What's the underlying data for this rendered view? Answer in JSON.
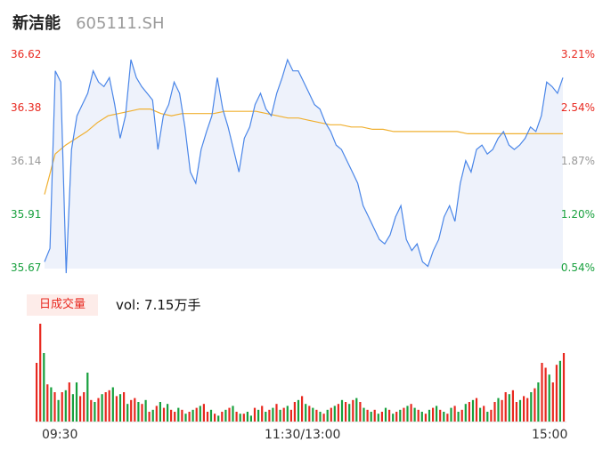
{
  "header": {
    "name": "新洁能",
    "code": "605111.SH"
  },
  "price_axis": {
    "left_ticks": [
      "36.62",
      "36.38",
      "36.14",
      "35.91",
      "35.67"
    ],
    "right_ticks": [
      "3.21%",
      "2.54%",
      "1.87%",
      "1.20%",
      "0.54%"
    ],
    "colors": {
      "up": "#e8281f",
      "down": "#17a03d",
      "neutral": "#999999"
    }
  },
  "volume": {
    "badge": "日成交量",
    "text": "vol: 7.15万手"
  },
  "time_labels": [
    "09:30",
    "11:30/13:00",
    "15:00"
  ],
  "colors": {
    "price_line": "#4a86e8",
    "avg_line": "#f0b030",
    "vol_up": "#e8281f",
    "vol_down": "#17a03d"
  },
  "chart_data": [
    {
      "type": "line",
      "title": "",
      "x_range": [
        "09:30",
        "15:00"
      ],
      "ylim": [
        35.67,
        36.62
      ],
      "series": [
        {
          "name": "",
          "values": [
            35.7,
            35.76,
            36.55,
            36.5,
            35.65,
            36.2,
            36.35,
            36.4,
            36.45,
            36.55,
            36.5,
            36.48,
            36.52,
            36.4,
            36.25,
            36.35,
            36.6,
            36.52,
            36.48,
            36.45,
            36.42,
            36.2,
            36.35,
            36.4,
            36.5,
            36.45,
            36.3,
            36.1,
            36.05,
            36.2,
            36.28,
            36.35,
            36.52,
            36.38,
            36.3,
            36.2,
            36.1,
            36.25,
            36.3,
            36.4,
            36.45,
            36.38,
            36.35,
            36.45,
            36.52,
            36.6,
            36.55,
            36.55,
            36.5,
            36.45,
            36.4,
            36.38,
            36.32,
            36.28,
            36.22,
            36.2,
            36.15,
            36.1,
            36.05,
            35.95,
            35.9,
            35.85,
            35.8,
            35.78,
            35.82,
            35.9,
            35.95,
            35.8,
            35.75,
            35.78,
            35.7,
            35.68,
            35.75,
            35.8,
            35.9,
            35.95,
            35.88,
            36.05,
            36.15,
            36.1,
            36.2,
            36.22,
            36.18,
            36.2,
            36.25,
            36.28,
            36.22,
            36.2,
            36.22,
            36.25,
            36.3,
            36.28,
            36.35,
            36.5,
            36.48,
            36.45,
            36.52
          ]
        },
        {
          "name": "",
          "values": [
            36.0,
            36.18,
            36.22,
            36.25,
            36.28,
            36.32,
            36.35,
            36.36,
            36.37,
            36.38,
            36.38,
            36.36,
            36.35,
            36.36,
            36.36,
            36.36,
            36.36,
            36.37,
            36.37,
            36.37,
            36.37,
            36.36,
            36.35,
            36.34,
            36.34,
            36.33,
            36.32,
            36.31,
            36.31,
            36.3,
            36.3,
            36.29,
            36.29,
            36.28,
            36.28,
            36.28,
            36.28,
            36.28,
            36.28,
            36.28,
            36.27,
            36.27,
            36.27,
            36.27,
            36.27,
            36.27,
            36.27,
            36.27,
            36.27,
            36.27
          ]
        }
      ]
    },
    {
      "type": "bar",
      "title": "日成交量",
      "values": [
        60,
        100,
        70,
        38,
        35,
        30,
        22,
        30,
        32,
        40,
        28,
        40,
        26,
        30,
        50,
        22,
        20,
        24,
        28,
        30,
        32,
        35,
        26,
        28,
        30,
        18,
        22,
        24,
        20,
        18,
        22,
        10,
        12,
        16,
        20,
        14,
        18,
        12,
        10,
        14,
        12,
        8,
        10,
        12,
        14,
        16,
        18,
        10,
        12,
        8,
        6,
        10,
        12,
        14,
        16,
        10,
        8,
        8,
        10,
        6,
        14,
        12,
        16,
        10,
        12,
        14,
        18,
        12,
        14,
        16,
        12,
        20,
        22,
        26,
        18,
        16,
        14,
        12,
        10,
        8,
        12,
        14,
        16,
        18,
        22,
        20,
        18,
        22,
        24,
        20,
        14,
        12,
        10,
        12,
        8,
        10,
        14,
        12,
        8,
        10,
        12,
        14,
        16,
        18,
        14,
        12,
        10,
        8,
        12,
        14,
        16,
        12,
        10,
        8,
        14,
        16,
        10,
        12,
        18,
        20,
        22,
        24,
        14,
        16,
        10,
        12,
        20,
        24,
        22,
        30,
        28,
        32,
        20,
        22,
        26,
        24,
        30,
        34,
        40,
        60,
        55,
        48,
        40,
        58,
        62,
        70
      ],
      "up": [
        1,
        1,
        0,
        1,
        0,
        1,
        0,
        1,
        0,
        1,
        0,
        0,
        1,
        1,
        0,
        1,
        0,
        1,
        0,
        1,
        1,
        0,
        1,
        0,
        1,
        0,
        1,
        1,
        0,
        1,
        0,
        1,
        0,
        1,
        0,
        1,
        0,
        1,
        1,
        0,
        1,
        0,
        1,
        0,
        1,
        0,
        1,
        1,
        0,
        1,
        0,
        1,
        0,
        1,
        0,
        1,
        0,
        1,
        0,
        0,
        1,
        0,
        1,
        0,
        1,
        0,
        1,
        0,
        1,
        0,
        1,
        1,
        0,
        1,
        0,
        1,
        0,
        1,
        0,
        1,
        0,
        1,
        0,
        1,
        0,
        1,
        0,
        1,
        0,
        1,
        0,
        1,
        0,
        1,
        0,
        1,
        0,
        1,
        0,
        1,
        0,
        1,
        0,
        1,
        0,
        1,
        0,
        1,
        0,
        1,
        0,
        1,
        0,
        1,
        0,
        1,
        0,
        1,
        0,
        1,
        0,
        1,
        0,
        1,
        0,
        1,
        1,
        0,
        1,
        1,
        0,
        1,
        1,
        0,
        1,
        1,
        0,
        1,
        0,
        1,
        1,
        0,
        1,
        1,
        0,
        1
      ]
    }
  ]
}
